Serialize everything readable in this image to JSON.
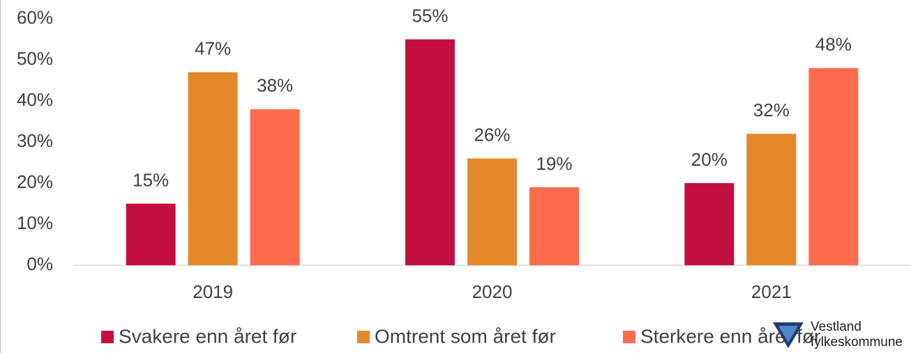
{
  "chart_data": {
    "type": "bar",
    "categories": [
      "2019",
      "2020",
      "2021"
    ],
    "series": [
      {
        "name": "Svakere enn året før",
        "color": "#c41040",
        "values": [
          15,
          55,
          20
        ],
        "value_labels": [
          "15%",
          "55%",
          "20%"
        ]
      },
      {
        "name": "Omtrent som året før",
        "color": "#e5882a",
        "values": [
          47,
          26,
          32
        ],
        "value_labels": [
          "47%",
          "26%",
          "32%"
        ]
      },
      {
        "name": "Sterkere enn året før",
        "color": "#ff6b4d",
        "values": [
          38,
          19,
          48
        ],
        "value_labels": [
          "38%",
          "19%",
          "48%"
        ]
      }
    ],
    "ylim": [
      0,
      60
    ],
    "yticks": [
      {
        "value": 0,
        "label": "0%"
      },
      {
        "value": 10,
        "label": "10%"
      },
      {
        "value": 20,
        "label": "20%"
      },
      {
        "value": 30,
        "label": "30%"
      },
      {
        "value": 40,
        "label": "40%"
      },
      {
        "value": 50,
        "label": "50%"
      },
      {
        "value": 60,
        "label": "60%"
      }
    ],
    "grid": false,
    "legend": "bottom",
    "logo": {
      "line1": "Vestland",
      "line2": "fylkeskommune"
    }
  }
}
